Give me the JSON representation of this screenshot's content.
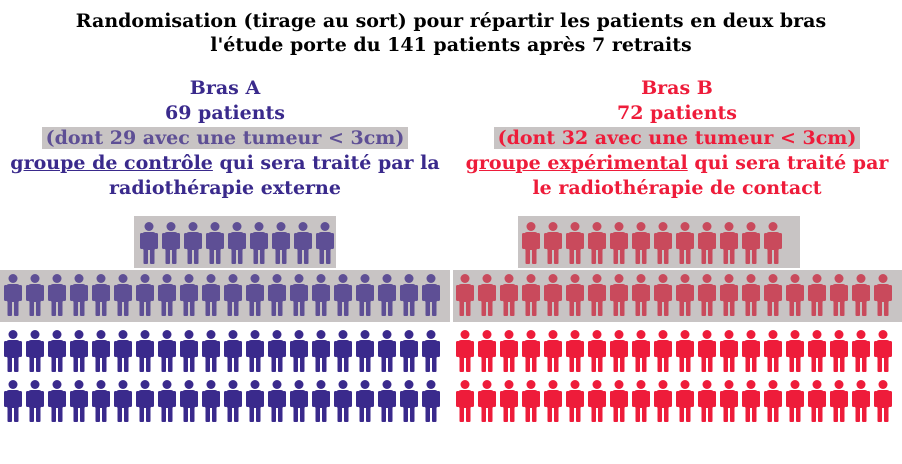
{
  "title_line1": "Randomisation (tirage au sort) pour répartir les patients en deux bras",
  "title_line2": "l'étude porte du 141 patients après 7 retraits",
  "arm_a": {
    "name": "Bras A",
    "count": "69 patients",
    "subgroup": "(dont 29 avec une tumeur < 3cm)",
    "group_underlined": "groupe de contrôle",
    "group_rest_line1": " qui sera traité par la",
    "group_line2": "radiothérapie externe",
    "color": "#3a2a8c",
    "highlight_color": "#5e4f95",
    "patients_total": 69,
    "patients_small_tumour": 29
  },
  "arm_b": {
    "name": "Bras B",
    "count": "72 patients",
    "subgroup": "(dont 32 avec une tumeur < 3cm)",
    "group_underlined": "groupe expérimental",
    "group_rest_line1": " qui sera traité par",
    "group_line2": "le radiothérapie de contact",
    "color": "#ee1c3a",
    "highlight_color": "#c94a5c",
    "patients_total": 72,
    "patients_small_tumour": 32
  },
  "highlight_band_color": "#c8c4c4",
  "icon": "person-icon"
}
